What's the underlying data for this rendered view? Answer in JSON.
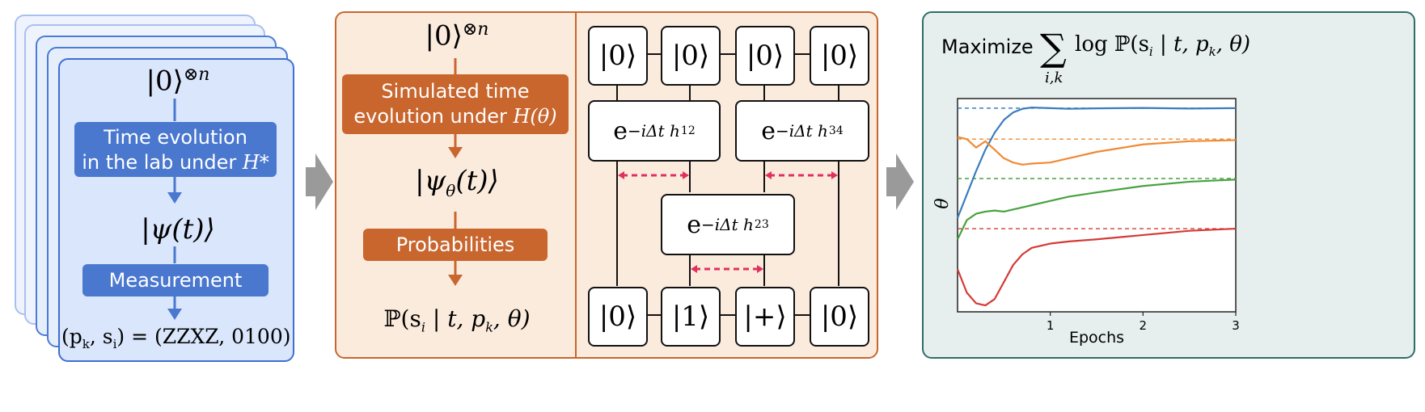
{
  "lab_panel": {
    "initial_state": "|0⟩",
    "initial_state_power": "⊗n",
    "time_evolution_line1": "Time evolution",
    "time_evolution_line2": "in the lab under ",
    "time_evolution_hamiltonian": "H*",
    "evolved_state": "|ψ(t)⟩",
    "measurement_label": "Measurement",
    "result_lhs": "(p",
    "result_lhs_sub1": "k",
    "result_lhs_mid": ", s",
    "result_lhs_sub2": "i",
    "result_rhs": ") = (ZZXZ, 0100)"
  },
  "simulation_panel": {
    "initial_state": "|0⟩",
    "initial_state_power": "⊗n",
    "sim_line1": "Simulated time",
    "sim_line2": "evolution under ",
    "sim_hamiltonian": "H(θ)",
    "evolved_state": "|ψ",
    "evolved_state_sub": "θ",
    "evolved_state_end": "(t)⟩",
    "probabilities_label": "Probabilities",
    "prob_expr": "ℙ(s",
    "prob_sub1": "i",
    "prob_mid": " | t, p",
    "prob_sub2": "k",
    "prob_end": ", θ)"
  },
  "circuit": {
    "top_kets": [
      "|0⟩",
      "|0⟩",
      "|0⟩",
      "|0⟩"
    ],
    "bottom_kets": [
      "|0⟩",
      "|1⟩",
      "|+⟩",
      "|0⟩"
    ],
    "gate_12": {
      "base": "e",
      "exp": "−iΔt h",
      "sub": "12"
    },
    "gate_34": {
      "base": "e",
      "exp": "−iΔt h",
      "sub": "34"
    },
    "gate_23": {
      "base": "e",
      "exp": "−iΔt h",
      "sub": "23"
    },
    "link_color": "#e0315e"
  },
  "objective_panel": {
    "title_word": "Maximize",
    "sum_symbol": "∑",
    "sum_index": "i,k",
    "title_expr": "log ℙ(s",
    "title_sub1": "i",
    "title_mid": " | t, p",
    "title_sub2": "k",
    "title_end": ", θ)"
  },
  "chart_data": {
    "type": "line",
    "xlabel": "Epochs",
    "ylabel": "θ",
    "xlim": [
      0,
      3
    ],
    "ylim": [
      0,
      1
    ],
    "xticks": [
      "1",
      "2",
      "3"
    ],
    "series": [
      {
        "color": "#3a7dbe",
        "target": 0.955,
        "x": [
          0,
          0.1,
          0.2,
          0.3,
          0.4,
          0.5,
          0.6,
          0.7,
          0.8,
          1.0,
          1.2,
          1.5,
          2.0,
          2.5,
          3.0
        ],
        "y": [
          0.44,
          0.55,
          0.66,
          0.76,
          0.84,
          0.9,
          0.935,
          0.952,
          0.958,
          0.955,
          0.952,
          0.954,
          0.956,
          0.953,
          0.955
        ]
      },
      {
        "color": "#ef8a33",
        "target": 0.81,
        "x": [
          0,
          0.1,
          0.2,
          0.3,
          0.4,
          0.5,
          0.6,
          0.7,
          0.8,
          1.0,
          1.2,
          1.5,
          2.0,
          2.5,
          3.0
        ],
        "y": [
          0.82,
          0.81,
          0.77,
          0.8,
          0.76,
          0.72,
          0.7,
          0.69,
          0.695,
          0.7,
          0.72,
          0.75,
          0.785,
          0.8,
          0.805
        ]
      },
      {
        "color": "#47a23f",
        "target": 0.625,
        "x": [
          0,
          0.1,
          0.2,
          0.3,
          0.4,
          0.5,
          0.6,
          0.8,
          1.0,
          1.2,
          1.5,
          2.0,
          2.5,
          3.0
        ],
        "y": [
          0.34,
          0.43,
          0.46,
          0.47,
          0.475,
          0.47,
          0.48,
          0.5,
          0.52,
          0.54,
          0.56,
          0.59,
          0.61,
          0.62
        ]
      },
      {
        "color": "#d43b35",
        "target": 0.39,
        "x": [
          0,
          0.1,
          0.2,
          0.3,
          0.4,
          0.5,
          0.6,
          0.7,
          0.8,
          1.0,
          1.2,
          1.5,
          2.0,
          2.5,
          3.0
        ],
        "y": [
          0.2,
          0.09,
          0.04,
          0.03,
          0.06,
          0.14,
          0.22,
          0.27,
          0.3,
          0.32,
          0.33,
          0.34,
          0.36,
          0.38,
          0.39
        ]
      }
    ]
  }
}
